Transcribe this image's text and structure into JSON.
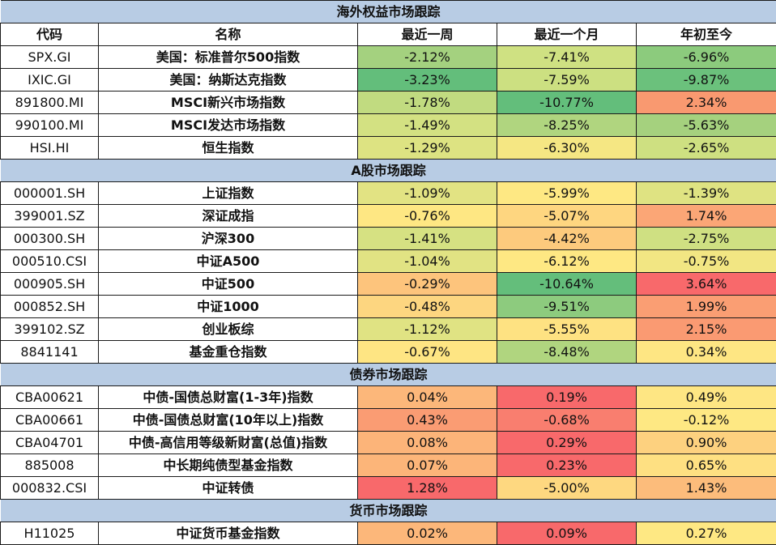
{
  "headers": {
    "code": "代码",
    "name": "名称",
    "week": "最近一周",
    "month": "最近一个月",
    "ytd": "年初至今"
  },
  "sections": [
    {
      "title": "海外权益市场跟踪",
      "rows": [
        {
          "code": "SPX.GI",
          "name": "美国：标准普尔500指数",
          "week": "-2.12%",
          "month": "-7.41%",
          "ytd": "-6.96%",
          "colors": [
            "#a4d17f",
            "#cfe182",
            "#8ccb7d"
          ]
        },
        {
          "code": "IXIC.GI",
          "name": "美国：纳斯达克指数",
          "week": "-3.23%",
          "month": "-7.59%",
          "ytd": "-9.87%",
          "colors": [
            "#63be7b",
            "#cce081",
            "#6bc17c"
          ]
        },
        {
          "code": "891800.MI",
          "name": "MSCI新兴市场指数",
          "week": "-1.78%",
          "month": "-10.77%",
          "ytd": "2.34%",
          "colors": [
            "#c1db80",
            "#63be7b",
            "#f99970"
          ]
        },
        {
          "code": "990100.MI",
          "name": "MSCI发达市场指数",
          "week": "-1.49%",
          "month": "-8.25%",
          "ytd": "-5.63%",
          "colors": [
            "#d3e182",
            "#b0d57f",
            "#a5d17e"
          ]
        },
        {
          "code": "HSI.HI",
          "name": "恒生指数",
          "week": "-1.29%",
          "month": "-6.30%",
          "ytd": "-2.65%",
          "colors": [
            "#dde382",
            "#f5e783",
            "#cee081"
          ]
        }
      ]
    },
    {
      "title": "A股市场跟踪",
      "rows": [
        {
          "code": "000001.SH",
          "name": "上证指数",
          "week": "-1.09%",
          "month": "-5.99%",
          "ytd": "-1.39%",
          "colors": [
            "#e2e383",
            "#fee883",
            "#dfe382"
          ]
        },
        {
          "code": "399001.SZ",
          "name": "深证成指",
          "week": "-0.76%",
          "month": "-5.07%",
          "ytd": "1.74%",
          "colors": [
            "#fee783",
            "#fed680",
            "#fba676"
          ]
        },
        {
          "code": "000300.SH",
          "name": "沪深300",
          "week": "-1.41%",
          "month": "-4.42%",
          "ytd": "-2.75%",
          "colors": [
            "#d6e182",
            "#fdca7d",
            "#cfe082"
          ]
        },
        {
          "code": "000510.CSI",
          "name": "中证A500",
          "week": "-1.04%",
          "month": "-6.12%",
          "ytd": "-0.75%",
          "colors": [
            "#e1e383",
            "#fee883",
            "#f2e683"
          ]
        },
        {
          "code": "000905.SH",
          "name": "中证500",
          "week": "-0.29%",
          "month": "-10.64%",
          "ytd": "3.64%",
          "colors": [
            "#fdc47c",
            "#64be7b",
            "#f8696b"
          ]
        },
        {
          "code": "000852.SH",
          "name": "中证1000",
          "week": "-0.48%",
          "month": "-9.51%",
          "ytd": "1.99%",
          "colors": [
            "#fdd680",
            "#8dcb7e",
            "#fa9e73"
          ]
        },
        {
          "code": "399102.SZ",
          "name": "创业板综",
          "week": "-1.12%",
          "month": "-5.55%",
          "ytd": "2.15%",
          "colors": [
            "#e0e383",
            "#fee282",
            "#fa9a72"
          ]
        },
        {
          "code": "8841141",
          "name": "基金重仓指数",
          "week": "-0.67%",
          "month": "-8.48%",
          "ytd": "0.34%",
          "colors": [
            "#fee583",
            "#b0d57f",
            "#fee683"
          ]
        }
      ]
    },
    {
      "title": "债券市场跟踪",
      "rows": [
        {
          "code": "CBA00621",
          "name": "中债-国债总财富(1-3年)指数",
          "week": "0.04%",
          "month": "0.19%",
          "ytd": "0.49%",
          "colors": [
            "#fcb77a",
            "#f8696b",
            "#fee683"
          ]
        },
        {
          "code": "CBA00661",
          "name": "中债-国债总财富(10年以上)指数",
          "week": "0.43%",
          "month": "-0.68%",
          "ytd": "-0.12%",
          "colors": [
            "#fa9c73",
            "#f97e6f",
            "#fee883"
          ]
        },
        {
          "code": "CBA04701",
          "name": "中债-高信用等级新财富(总值)指数",
          "week": "0.08%",
          "month": "0.29%",
          "ytd": "0.90%",
          "colors": [
            "#fcb479",
            "#f8696b",
            "#fdd17f"
          ]
        },
        {
          "code": "885008",
          "name": "中长期纯债型基金指数",
          "week": "0.07%",
          "month": "0.23%",
          "ytd": "0.65%",
          "colors": [
            "#fcb579",
            "#f8696b",
            "#fee082"
          ]
        },
        {
          "code": "000832.CSI",
          "name": "中证转债",
          "week": "1.28%",
          "month": "-5.00%",
          "ytd": "1.43%",
          "colors": [
            "#f8696b",
            "#fed880",
            "#fcbc7b"
          ]
        }
      ]
    },
    {
      "title": "货币市场跟踪",
      "rows": [
        {
          "code": "H11025",
          "name": "中证货币基金指数",
          "week": "0.02%",
          "month": "0.09%",
          "ytd": "0.27%",
          "colors": [
            "#fcb77a",
            "#f8696b",
            "#fee883"
          ]
        }
      ]
    }
  ]
}
